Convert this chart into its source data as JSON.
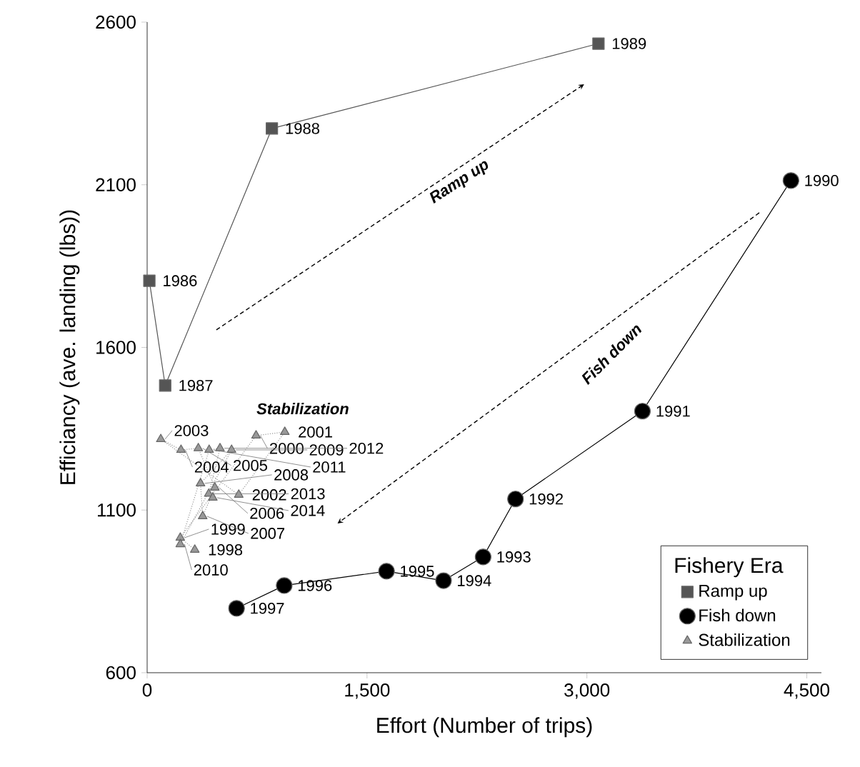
{
  "chart_data": {
    "type": "line",
    "xlabel": "Effort (Number of trips)",
    "ylabel": "Efficiancy (ave. landing (lbs))",
    "legend_title": "Fishery Era",
    "legend": "bottom right",
    "grid": false,
    "xlim": [
      0,
      4600
    ],
    "ylim": [
      600,
      2600
    ],
    "xticks": [
      0,
      {
        "value": 1500,
        "label": "1,500"
      },
      {
        "value": 3000,
        "label": "3,000"
      },
      {
        "value": 4500,
        "label": "4,500"
      }
    ],
    "yticks": [
      600,
      1100,
      1600,
      2100,
      2600
    ],
    "series": [
      {
        "name": "Ramp up",
        "color": "#555555",
        "marker": "square",
        "line_style": "solid",
        "x": [
          15,
          123,
          851,
          3079
        ],
        "values": [
          1805,
          1483,
          2273,
          2534
        ]
      },
      {
        "name": "Fish down",
        "color": "#000000",
        "marker": "circle",
        "line_style": "solid",
        "x": [
          4392,
          3379,
          2513,
          2292,
          2022,
          1633,
          935,
          610
        ],
        "values": [
          2113,
          1404,
          1134,
          956,
          883,
          912,
          868,
          798
        ]
      },
      {
        "name": "Stabilization",
        "color": "#999999",
        "marker": "triangle",
        "line_style": "dotted",
        "x": [
          325,
          226,
          743,
          939,
          625,
          93,
          231,
          349,
          462,
          379,
          364,
          576,
          226,
          423,
          497,
          420,
          448
        ],
        "values": [
          978,
          1015,
          1329,
          1340,
          1147,
          1318,
          1285,
          1290,
          1169,
          1081,
          1182,
          1285,
          995,
          1285,
          1290,
          1150,
          1138
        ]
      }
    ],
    "annotations": [
      {
        "text": "1986",
        "x": 15,
        "y": 1805
      },
      {
        "text": "1987",
        "x": 123,
        "y": 1483
      },
      {
        "text": "1988",
        "x": 851,
        "y": 2273
      },
      {
        "text": "1989",
        "x": 3079,
        "y": 2534
      },
      {
        "text": "1990",
        "x": 4392,
        "y": 2113
      },
      {
        "text": "1991",
        "x": 3379,
        "y": 1404
      },
      {
        "text": "1992",
        "x": 2513,
        "y": 1134
      },
      {
        "text": "1993",
        "x": 2292,
        "y": 956
      },
      {
        "text": "1994",
        "x": 2022,
        "y": 883
      },
      {
        "text": "1995",
        "x": 1633,
        "y": 912
      },
      {
        "text": "1996",
        "x": 935,
        "y": 868
      },
      {
        "text": "1997",
        "x": 610,
        "y": 798
      },
      {
        "text": "1998",
        "x": 325,
        "y": 978
      },
      {
        "text": "1999",
        "x": 226,
        "y": 1015
      },
      {
        "text": "2000",
        "x": 743,
        "y": 1329
      },
      {
        "text": "2001",
        "x": 939,
        "y": 1340
      },
      {
        "text": "2002",
        "x": 625,
        "y": 1147
      },
      {
        "text": "2003",
        "x": 93,
        "y": 1318
      },
      {
        "text": "2004",
        "x": 231,
        "y": 1285
      },
      {
        "text": "2005",
        "x": 349,
        "y": 1290
      },
      {
        "text": "2006",
        "x": 462,
        "y": 1169
      },
      {
        "text": "2007",
        "x": 379,
        "y": 1081
      },
      {
        "text": "2008",
        "x": 364,
        "y": 1182
      },
      {
        "text": "2009",
        "x": 576,
        "y": 1285
      },
      {
        "text": "2010",
        "x": 226,
        "y": 995
      },
      {
        "text": "2011",
        "x": 423,
        "y": 1285
      },
      {
        "text": "2012",
        "x": 497,
        "y": 1290
      },
      {
        "text": "2013",
        "x": 420,
        "y": 1150
      },
      {
        "text": "2014",
        "x": 448,
        "y": 1138
      },
      "Ramp up",
      "Fish down",
      "Stabilization"
    ]
  }
}
